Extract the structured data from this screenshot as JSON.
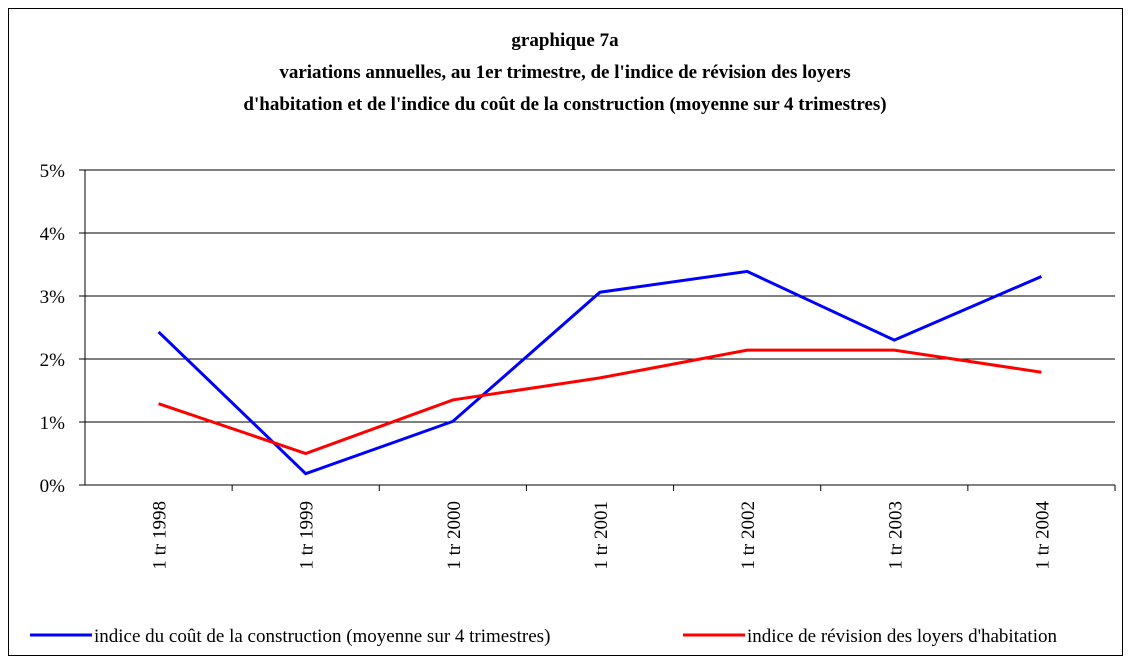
{
  "chart_data": {
    "type": "line",
    "title": [
      "graphique 7a",
      "variations annuelles, au 1er trimestre, de l'indice de révision des loyers",
      "d'habitation et de l'indice du coût de la construction (moyenne sur 4 trimestres)"
    ],
    "categories": [
      "1 tr 1998",
      "1 tr 1999",
      "1 tr 2000",
      "1 tr 2001",
      "1 tr 2002",
      "1 tr 2003",
      "1 tr 2004"
    ],
    "series": [
      {
        "name": "indice du coût de la construction (moyenne sur 4 trimestres)",
        "color": "#0000ff",
        "values": [
          2.43,
          0.18,
          1.01,
          3.06,
          3.39,
          2.3,
          3.31
        ]
      },
      {
        "name": "indice de révision des loyers d'habitation",
        "color": "#ff0000",
        "values": [
          1.29,
          0.5,
          1.35,
          1.7,
          2.14,
          2.14,
          1.79
        ]
      }
    ],
    "ylim": [
      0,
      5
    ],
    "yticks": [
      {
        "value": 0,
        "label": "0%"
      },
      {
        "value": 1,
        "label": "1%"
      },
      {
        "value": 2,
        "label": "2%"
      },
      {
        "value": 3,
        "label": "3%"
      },
      {
        "value": 4,
        "label": "4%"
      },
      {
        "value": 5,
        "label": "5%"
      }
    ],
    "grid": true,
    "legend": "bottom"
  }
}
